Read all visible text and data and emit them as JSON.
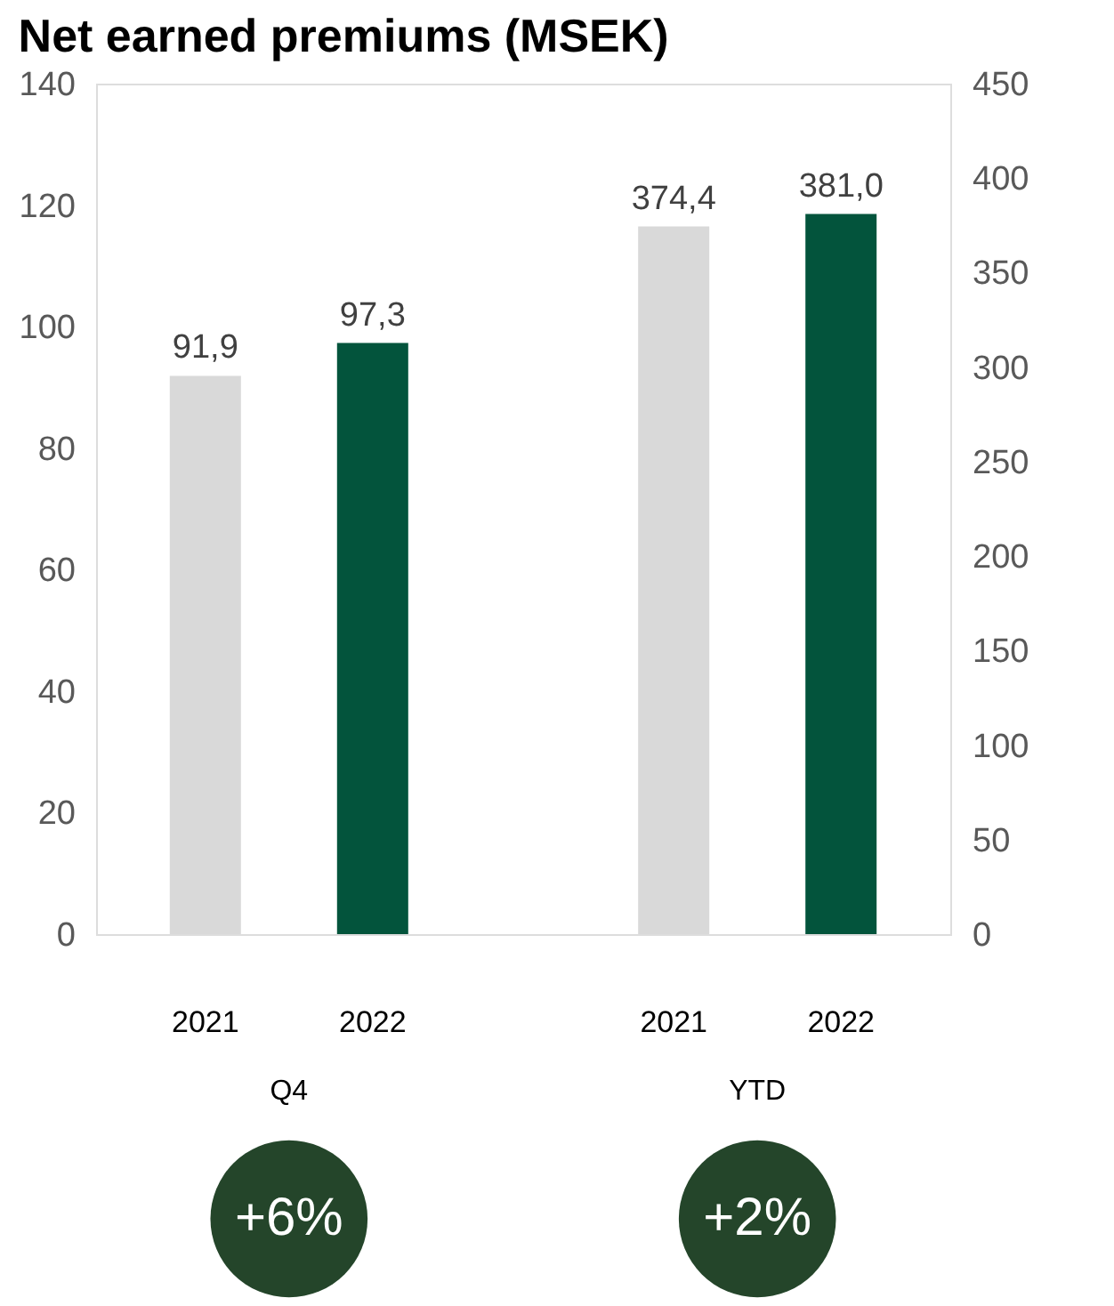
{
  "chart_data": {
    "type": "bar",
    "title": "Net earned premiums (MSEK)",
    "categories": [
      "2021",
      "2022",
      "2021",
      "2022"
    ],
    "series": [
      {
        "colors": [
          "#d9d9d9",
          "#03543c",
          "#d9d9d9",
          "#03543c"
        ],
        "values": [
          91.9,
          97.3,
          null,
          null
        ],
        "value_labels": [
          "91,9",
          "97,3",
          null,
          null
        ]
      },
      {
        "axis": "y2",
        "colors": [
          "#d9d9d9",
          "#03543c",
          "#d9d9d9",
          "#03543c"
        ],
        "values": [
          null,
          null,
          374.4,
          381.0
        ],
        "value_labels": [
          null,
          null,
          "374,4",
          "381,0"
        ]
      }
    ],
    "ylim": [
      0,
      140
    ],
    "yticks": [
      0,
      20,
      40,
      60,
      80,
      100,
      120,
      140
    ],
    "y2lim": [
      0,
      450
    ],
    "y2ticks": [
      0,
      50,
      100,
      150,
      200,
      250,
      300,
      350,
      400,
      450
    ],
    "annotations": [
      "Q4",
      "YTD",
      "+6%",
      "+2%"
    ],
    "grid": false
  }
}
